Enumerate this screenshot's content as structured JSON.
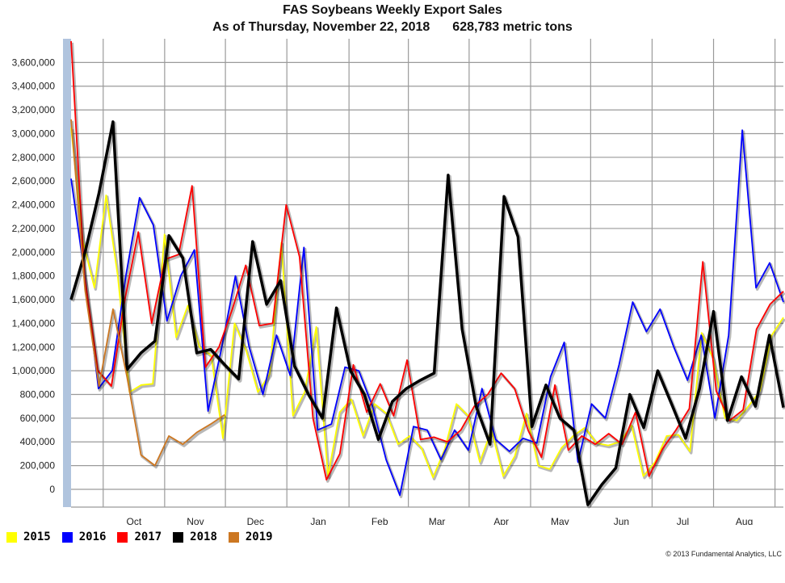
{
  "chart_data": {
    "type": "line",
    "title": "FAS Soybeans Weekly Export Sales",
    "subtitle_date": "As of Thursday, November 22, 2018",
    "subtitle_value": "628,783 metric tons",
    "xlabel": "",
    "ylabel": "",
    "ylim": [
      -150000,
      3800000
    ],
    "yticks": [
      0,
      200000,
      400000,
      600000,
      800000,
      1000000,
      1200000,
      1400000,
      1600000,
      1800000,
      2000000,
      2200000,
      2400000,
      2600000,
      2800000,
      3000000,
      3200000,
      3400000,
      3600000
    ],
    "ytick_labels": [
      "0",
      "200,000",
      "400,000",
      "600,000",
      "800,000",
      "1,000,000",
      "1,200,000",
      "1,400,000",
      "1,600,000",
      "1,800,000",
      "2,000,000",
      "2,200,000",
      "2,400,000",
      "2,600,000",
      "2,800,000",
      "3,000,000",
      "3,200,000",
      "3,400,000",
      "3,600,000"
    ],
    "week_range": [
      1,
      52
    ],
    "month_labels": [
      {
        "label": "Oct",
        "week": 5.5
      },
      {
        "label": "Nov",
        "week": 9.9
      },
      {
        "label": "Dec",
        "week": 14.2
      },
      {
        "label": "Jan",
        "week": 18.7
      },
      {
        "label": "Feb",
        "week": 23.1
      },
      {
        "label": "Mar",
        "week": 27.2
      },
      {
        "label": "Apr",
        "week": 31.8
      },
      {
        "label": "May",
        "week": 36.0
      },
      {
        "label": "Jun",
        "week": 40.4
      },
      {
        "label": "Jul",
        "week": 44.8
      },
      {
        "label": "Aug",
        "week": 49.2
      }
    ],
    "grid": true,
    "legend_position": "bottom-left",
    "series": [
      {
        "name": "2015",
        "color": "#ffff00",
        "width": 1.8,
        "values": [
          3050000,
          2100000,
          1700000,
          2480000,
          1800000,
          820000,
          880000,
          890000,
          2150000,
          1280000,
          1550000,
          1200000,
          1130000,
          430000,
          1400000,
          1170000,
          820000,
          970000,
          2080000,
          620000,
          820000,
          1370000,
          110000,
          650000,
          760000,
          450000,
          720000,
          640000,
          380000,
          450000,
          350000,
          100000,
          340000,
          720000,
          620000,
          230000,
          500000,
          110000,
          280000,
          640000,
          200000,
          170000,
          350000,
          450000,
          520000,
          390000,
          370000,
          400000,
          540000,
          110000,
          230000,
          450000,
          460000,
          320000,
          1320000,
          1100000,
          600000,
          580000,
          700000,
          830000,
          1300000,
          1450000
        ]
      },
      {
        "name": "2016",
        "color": "#0000ff",
        "width": 1.8,
        "values": [
          2620000,
          1800000,
          850000,
          1000000,
          1800000,
          2460000,
          2230000,
          1420000,
          1800000,
          2020000,
          660000,
          1200000,
          1800000,
          1200000,
          800000,
          1300000,
          960000,
          2040000,
          500000,
          550000,
          1030000,
          1000000,
          700000,
          250000,
          -50000,
          530000,
          500000,
          250000,
          500000,
          330000,
          850000,
          420000,
          320000,
          430000,
          390000,
          950000,
          1240000,
          230000,
          720000,
          600000,
          1050000,
          1580000,
          1330000,
          1520000,
          1200000,
          920000,
          1300000,
          600000,
          1300000,
          3030000,
          1700000,
          1910000,
          1580000
        ]
      },
      {
        "name": "2017",
        "color": "#ff0000",
        "width": 1.8,
        "values": [
          3780000,
          1800000,
          1000000,
          870000,
          1600000,
          2170000,
          1400000,
          1940000,
          1980000,
          2560000,
          1030000,
          1200000,
          1520000,
          1890000,
          1380000,
          1400000,
          2400000,
          1960000,
          600000,
          80000,
          300000,
          1050000,
          650000,
          890000,
          620000,
          1090000,
          420000,
          440000,
          400000,
          500000,
          700000,
          800000,
          980000,
          850000,
          500000,
          270000,
          880000,
          330000,
          450000,
          380000,
          470000,
          380000,
          650000,
          110000,
          340000,
          500000,
          680000,
          1920000,
          830000,
          580000,
          670000,
          1350000,
          1560000,
          1670000
        ]
      },
      {
        "name": "2018",
        "color": "#000000",
        "width": 3.5,
        "values": [
          1600000,
          2000000,
          2500000,
          3100000,
          1010000,
          1150000,
          1250000,
          2140000,
          1950000,
          1150000,
          1180000,
          1050000,
          930000,
          2090000,
          1560000,
          1760000,
          1040000,
          800000,
          600000,
          1530000,
          1000000,
          800000,
          420000,
          740000,
          850000,
          920000,
          980000,
          2650000,
          1350000,
          700000,
          380000,
          2470000,
          2130000,
          530000,
          880000,
          600000,
          500000,
          -130000,
          40000,
          180000,
          800000,
          520000,
          1000000,
          720000,
          430000,
          850000,
          1500000,
          580000,
          950000,
          700000,
          1300000,
          690000
        ]
      },
      {
        "name": "2019",
        "color": "#cc7722",
        "width": 1.8,
        "values": [
          3120000,
          1680000,
          870000,
          1520000,
          950000,
          290000,
          200000,
          450000,
          380000,
          480000,
          550000,
          628783
        ]
      }
    ]
  },
  "legend": [
    {
      "label": "2015",
      "color": "#ffff00"
    },
    {
      "label": "2016",
      "color": "#0000ff"
    },
    {
      "label": "2017",
      "color": "#ff0000"
    },
    {
      "label": "2018",
      "color": "#000000"
    },
    {
      "label": "2019",
      "color": "#cc7722"
    }
  ],
  "copyright": "© 2013 Fundamental Analytics, LLC"
}
